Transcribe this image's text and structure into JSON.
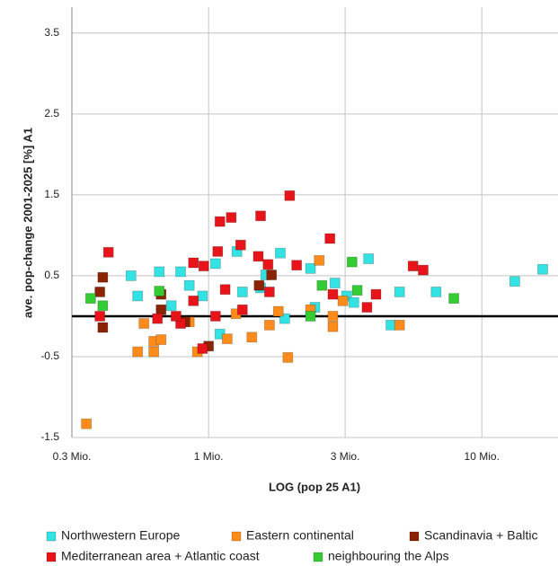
{
  "chart_data": {
    "type": "scatter",
    "x_label": "LOG (pop 25  A1)",
    "y_label": "ave. pop-change 2001-2025 [%]  A1",
    "xlim": [
      0.316,
      19
    ],
    "xlog": true,
    "xticks": [
      {
        "value": 0.316,
        "label": "0.3 Mio."
      },
      {
        "value": 1,
        "label": "1 Mio."
      },
      {
        "value": 3.16,
        "label": "3 Mio."
      },
      {
        "value": 10,
        "label": "10 Mio."
      }
    ],
    "ylim": [
      -1.5,
      3.82
    ],
    "yticks": [
      -1.5,
      -0.5,
      0.5,
      1.5,
      2.5,
      3.5
    ],
    "grid": true,
    "zero_line": true,
    "legend": "bottom",
    "series": [
      {
        "name": "Northwestern Europe",
        "color": "#33e3e3",
        "x": [
          0.52,
          0.66,
          0.79,
          1.06,
          1.27,
          1.83,
          1.62,
          3.85,
          5.0,
          6.8,
          13.2,
          16.7,
          4.65,
          2.36,
          2.9,
          3.2,
          0.55,
          0.73,
          1.1,
          1.9,
          1.33,
          1.55,
          0.95,
          0.85,
          3.4,
          2.45
        ],
        "values": [
          0.5,
          0.55,
          0.55,
          0.65,
          0.8,
          0.78,
          0.51,
          0.71,
          0.3,
          0.3,
          0.43,
          0.58,
          -0.11,
          0.59,
          0.41,
          0.25,
          0.25,
          0.13,
          -0.22,
          -0.03,
          0.3,
          0.35,
          0.25,
          0.38,
          0.17,
          0.11
        ]
      },
      {
        "name": "Eastern continental",
        "color": "#ff8c1a",
        "x": [
          0.357,
          0.58,
          0.55,
          0.63,
          0.67,
          0.63,
          0.91,
          1.17,
          1.44,
          1.67,
          1.95,
          2.36,
          2.54,
          2.85,
          2.85,
          3.1,
          5.0,
          0.85,
          1.26,
          1.8
        ],
        "values": [
          -1.33,
          -0.09,
          -0.44,
          -0.31,
          -0.29,
          -0.44,
          -0.44,
          -0.28,
          -0.26,
          -0.11,
          -0.51,
          0.08,
          0.69,
          -0.13,
          0.0,
          0.19,
          -0.11,
          -0.07,
          0.03,
          0.06
        ]
      },
      {
        "name": "Scandinavia + Baltic",
        "color": "#8b2200",
        "x": [
          0.4,
          0.41,
          0.41,
          0.67,
          0.82,
          1.0,
          1.53,
          1.7,
          0.67
        ],
        "values": [
          0.3,
          0.48,
          -0.14,
          0.27,
          -0.07,
          -0.37,
          0.38,
          0.51,
          0.08
        ]
      },
      {
        "name": "Mediterranean area + Atlantic coast",
        "color": "#e8141a",
        "x": [
          0.43,
          0.4,
          0.65,
          0.79,
          0.88,
          0.96,
          0.95,
          1.08,
          1.1,
          1.21,
          1.55,
          1.98,
          1.31,
          1.52,
          1.65,
          2.1,
          2.78,
          5.6,
          6.1,
          1.15,
          1.33,
          1.67,
          1.06,
          3.8,
          4.1,
          0.88,
          2.85,
          0.76
        ],
        "values": [
          0.79,
          0.0,
          -0.03,
          -0.09,
          0.66,
          0.62,
          -0.4,
          0.8,
          1.17,
          1.22,
          1.24,
          1.49,
          0.88,
          0.74,
          0.64,
          0.63,
          0.96,
          0.62,
          0.57,
          0.33,
          0.08,
          0.3,
          0.0,
          0.11,
          0.27,
          0.19,
          0.27,
          0.0
        ]
      },
      {
        "name": "neighbouring the Alps",
        "color": "#33cc33",
        "x": [
          0.37,
          0.41,
          0.66,
          2.6,
          2.36,
          3.35,
          3.5,
          7.9
        ],
        "values": [
          0.22,
          0.13,
          0.31,
          0.38,
          0.0,
          0.67,
          0.32,
          0.22
        ]
      }
    ]
  }
}
